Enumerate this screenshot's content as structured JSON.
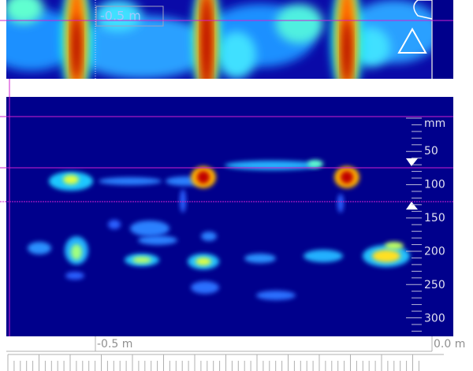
{
  "top_panel": {
    "marker_label": "-0.5 m"
  },
  "depth_scale": {
    "unit": "mm",
    "labels": [
      "50",
      "100",
      "150",
      "200",
      "250",
      "300"
    ]
  },
  "ruler": {
    "left_label": "-0.5 m",
    "right_label": "0.0 m"
  }
}
